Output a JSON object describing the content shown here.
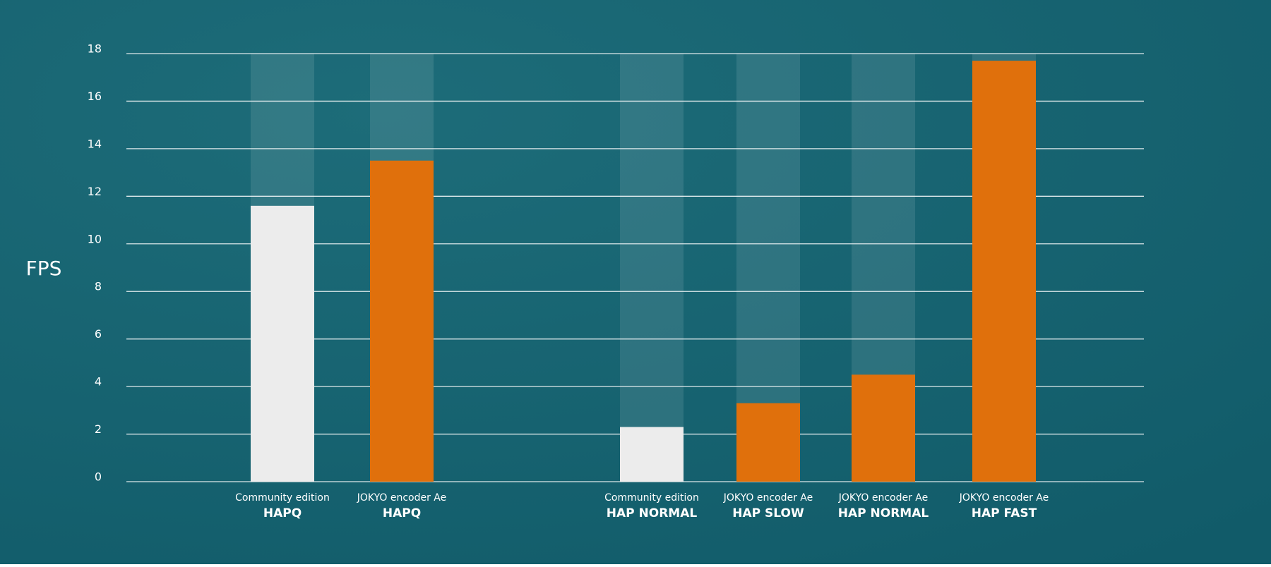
{
  "chart_data": {
    "type": "bar",
    "y_label": "FPS",
    "categories": [
      "HAPQ",
      "HAPQ",
      "HAP NORMAL",
      "HAP SLOW",
      "HAP NORMAL",
      "HAP FAST"
    ],
    "category_sublabels": [
      "Community edition",
      "JOKYO encoder Ae",
      "Community edition",
      "JOKYO encoder Ae",
      "JOKYO encoder Ae",
      "JOKYO encoder Ae"
    ],
    "values": [
      11.6,
      13.5,
      2.3,
      3.3,
      4.5,
      17.7
    ],
    "colors": [
      "#ececec",
      "#e0700c",
      "#ececec",
      "#e0700c",
      "#e0700c",
      "#e0700c"
    ],
    "ylim": [
      0,
      18
    ],
    "yticks": [
      0,
      2,
      4,
      6,
      8,
      10,
      12,
      14,
      16,
      18
    ],
    "grid": true
  }
}
